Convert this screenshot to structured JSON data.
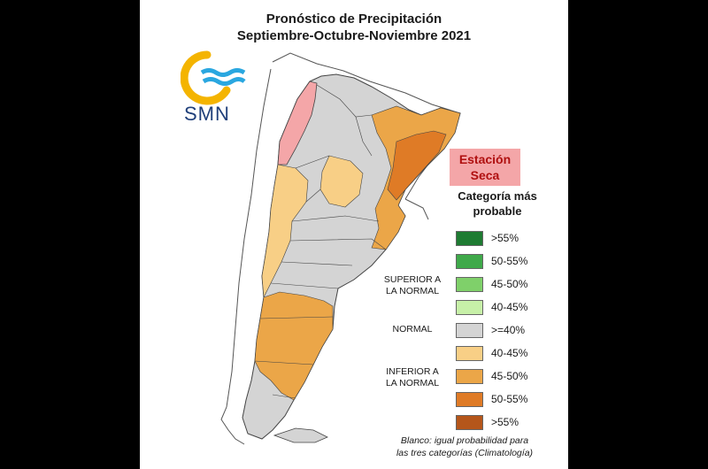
{
  "title": {
    "line1": "Pronóstico de Precipitación",
    "line2": "Septiembre-Octubre-Noviembre 2021"
  },
  "logo": {
    "text": "SMN",
    "icon": "smn-sun-wave-icon",
    "colors": {
      "sun": "#f4b400",
      "wave": "#2aa7e0"
    }
  },
  "season_badge": {
    "line1": "Estación",
    "line2": "Seca",
    "bg": "#f4a6a8",
    "fg": "#b01010"
  },
  "legend": {
    "title_line1": "Categoría más",
    "title_line2": "probable",
    "groups": {
      "superior_line1": "SUPERIOR A",
      "superior_line2": "LA NORMAL",
      "normal": "NORMAL",
      "inferior_line1": "INFERIOR A",
      "inferior_line2": "LA NORMAL"
    },
    "items": [
      {
        "label": ">55%",
        "color": "#1e7b32"
      },
      {
        "label": "50-55%",
        "color": "#3fa94a"
      },
      {
        "label": "45-50%",
        "color": "#7fd06a"
      },
      {
        "label": "40-45%",
        "color": "#c7f0a8"
      },
      {
        "label": ">=40%",
        "color": "#d4d4d4"
      },
      {
        "label": "40-45%",
        "color": "#f8cf86"
      },
      {
        "label": "45-50%",
        "color": "#eba648"
      },
      {
        "label": "50-55%",
        "color": "#df7b26"
      },
      {
        "label": ">55%",
        "color": "#b5561a"
      }
    ]
  },
  "footnote": {
    "line1": "Blanco: igual probabilidad para",
    "line2": "las tres categorías (Climatología)"
  }
}
